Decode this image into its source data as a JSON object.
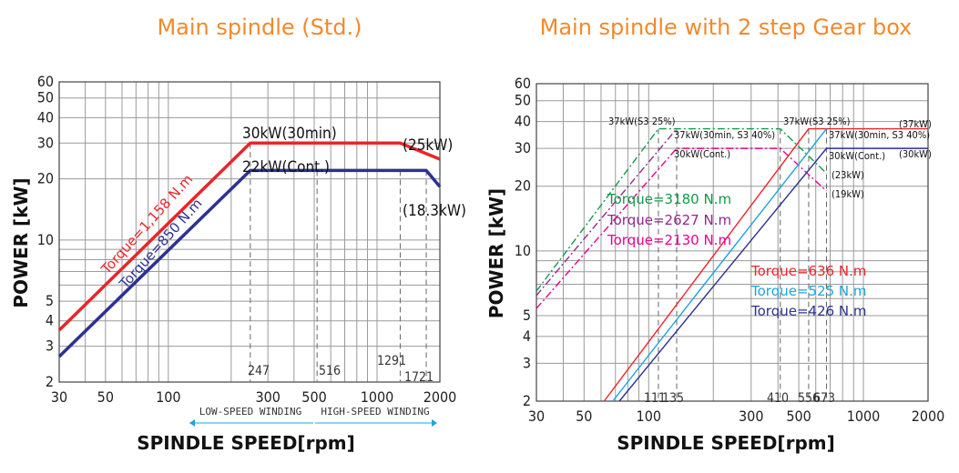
{
  "chart_data": [
    {
      "type": "line",
      "title": "Main spindle (Std.)",
      "xlabel": "SPINDLE SPEED[rpm]",
      "ylabel": "POWER [kW]",
      "xscale": "log",
      "yscale": "log",
      "xlim": [
        30,
        2000
      ],
      "ylim": [
        2,
        60
      ],
      "xticks": [
        "30",
        "50",
        "100",
        "300",
        "500",
        "1000",
        "2000"
      ],
      "yticks": [
        "2",
        "3",
        "4",
        "5",
        "10",
        "20",
        "30",
        "40",
        "50",
        "60"
      ],
      "grid": true,
      "series": [
        {
          "name": "Torque=1,158 N.m",
          "color": "#e8262a",
          "x": [
            30,
            247,
            1291,
            2000
          ],
          "y": [
            3.6,
            30,
            30,
            25
          ]
        },
        {
          "name": "Torque=850 N.m",
          "color": "#2e3192",
          "x": [
            30,
            247,
            1721,
            2000
          ],
          "y": [
            2.67,
            22,
            22,
            18.3
          ]
        }
      ],
      "annotations": {
        "power_top": "30kW(30min)",
        "power_cont": "22kW(Cont.)",
        "end_top": "(25kW)",
        "end_bottom": "(18.3kW)"
      },
      "rpm_markers": [
        "247",
        "516",
        "1291",
        "1721"
      ],
      "winding": {
        "low": "LOW-SPEED WINDING",
        "high": "HIGH-SPEED WINDING"
      }
    },
    {
      "type": "line",
      "title": "Main spindle with 2 step Gear box",
      "xlabel": "SPINDLE SPEED[rpm]",
      "ylabel": "POWER [kW]",
      "xscale": "log",
      "yscale": "log",
      "xlim": [
        30,
        2000
      ],
      "ylim": [
        2,
        60
      ],
      "xticks": [
        "30",
        "50",
        "100",
        "300",
        "500",
        "1000",
        "2000"
      ],
      "yticks": [
        "2",
        "3",
        "4",
        "5",
        "10",
        "20",
        "30",
        "40",
        "50",
        "60"
      ],
      "grid": true,
      "series": [
        {
          "name": "Torque=3180 N.m",
          "color": "#119a49",
          "style": "dashdot",
          "x": [
            30,
            111,
            410,
            673
          ],
          "y": [
            6.5,
            37,
            37,
            23
          ]
        },
        {
          "name": "Torque=2627 N.m",
          "color": "#92278f",
          "style": "dashdot",
          "x": [
            30,
            135
          ],
          "y": [
            6.2,
            37
          ]
        },
        {
          "name": "Torque=2130 N.m",
          "color": "#ec008c",
          "style": "dashdot",
          "x": [
            30,
            135,
            410,
            673
          ],
          "y": [
            5.4,
            30,
            30,
            19
          ]
        },
        {
          "name": "Torque=636 N.m",
          "color": "#e8262a",
          "x": [
            62,
            556,
            2000
          ],
          "y": [
            2,
            37,
            37
          ]
        },
        {
          "name": "Torque=525 N.m",
          "color": "#1ea3dc",
          "x": [
            68,
            673
          ],
          "y": [
            2,
            37
          ]
        },
        {
          "name": "Torque=426 N.m",
          "color": "#2e3192",
          "x": [
            73,
            673,
            2000
          ],
          "y": [
            2,
            30,
            30
          ]
        }
      ],
      "annotations": {
        "a1": "37kW(S3 25%)",
        "a2": "37kW(30min, S3 40%)",
        "a3": "30kW(Cont.)",
        "a4": "37kW(S3 25%)",
        "a5": "37kW(30min, S3 40%)",
        "a6": "30kW(Cont.)",
        "a7": "(37kW)",
        "a8": "(30kW)",
        "a9": "(23kW)",
        "a10": "(19kW)"
      },
      "rpm_markers": [
        "111",
        "135",
        "410",
        "556",
        "673"
      ]
    }
  ]
}
